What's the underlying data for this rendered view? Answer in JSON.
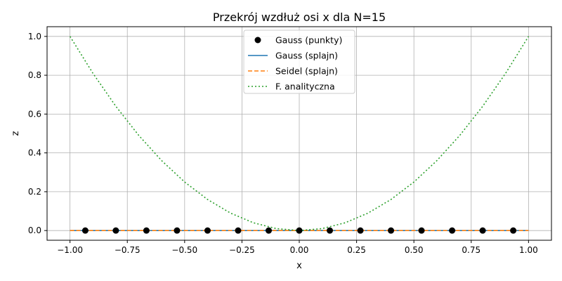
{
  "chart_data": {
    "type": "line",
    "title": "Przekrój wzdłuż osi x dla N=15",
    "xlabel": "x",
    "ylabel": "z",
    "xlim": [
      -1.1,
      1.1
    ],
    "ylim": [
      -0.05,
      1.05
    ],
    "grid": true,
    "legend_position": "top-center",
    "x_ticks": [
      -1.0,
      -0.75,
      -0.5,
      -0.25,
      0.0,
      0.25,
      0.5,
      0.75,
      1.0
    ],
    "x_tick_labels": [
      "−1.00",
      "−0.75",
      "−0.50",
      "−0.25",
      "0.00",
      "0.25",
      "0.50",
      "0.75",
      "1.00"
    ],
    "y_ticks": [
      0.0,
      0.2,
      0.4,
      0.6,
      0.8,
      1.0
    ],
    "y_tick_labels": [
      "0.0",
      "0.2",
      "0.4",
      "0.6",
      "0.8",
      "1.0"
    ],
    "series": [
      {
        "name": "Gauss (punkty)",
        "kind": "scatter",
        "color": "#000000",
        "x": [
          -0.9333,
          -0.8,
          -0.6667,
          -0.5333,
          -0.4,
          -0.2667,
          -0.1333,
          0.0,
          0.1333,
          0.2667,
          0.4,
          0.5333,
          0.6667,
          0.8,
          0.9333
        ],
        "y": [
          0,
          0,
          0,
          0,
          0,
          0,
          0,
          0,
          0,
          0,
          0,
          0,
          0,
          0,
          0
        ]
      },
      {
        "name": "Gauss (splajn)",
        "kind": "line",
        "style": "solid",
        "color": "#1f77b4",
        "x": [
          -1.0,
          1.0
        ],
        "y": [
          0,
          0
        ]
      },
      {
        "name": "Seidel (splajn)",
        "kind": "line",
        "style": "dashed",
        "color": "#ff7f0e",
        "x": [
          -1.0,
          1.0
        ],
        "y": [
          0,
          0
        ]
      },
      {
        "name": "F. analityczna",
        "kind": "line",
        "style": "dotted",
        "color": "#2ca02c",
        "x": [
          -1.0,
          -0.9,
          -0.8,
          -0.7,
          -0.6,
          -0.5,
          -0.4,
          -0.3,
          -0.2,
          -0.1,
          0.0,
          0.1,
          0.2,
          0.3,
          0.4,
          0.5,
          0.6,
          0.7,
          0.8,
          0.9,
          1.0
        ],
        "y": [
          1.0,
          0.81,
          0.64,
          0.49,
          0.36,
          0.25,
          0.16,
          0.09,
          0.04,
          0.01,
          0.0,
          0.01,
          0.04,
          0.09,
          0.16,
          0.25,
          0.36,
          0.49,
          0.64,
          0.81,
          1.0
        ]
      }
    ]
  }
}
